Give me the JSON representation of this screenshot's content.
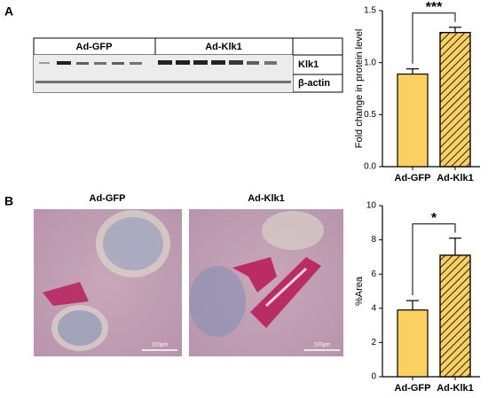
{
  "panel_labels": [
    "A",
    "B"
  ],
  "blot": {
    "groups": [
      "Ad-GFP",
      "Ad-Klk1"
    ],
    "rows": [
      "Klk1",
      "β-actin"
    ]
  },
  "histology": {
    "titles": [
      "Ad-GFP",
      "Ad-Klk1"
    ],
    "scale_bars": [
      "100μm",
      "100μm"
    ]
  },
  "chart_data": [
    {
      "type": "bar",
      "ylabel": "Fold change in protein level",
      "categories": [
        "Ad-GFP",
        "Ad-Klk1"
      ],
      "values": [
        0.89,
        1.29
      ],
      "errors": [
        0.05,
        0.05
      ],
      "colors": [
        "#fad160",
        "#fad160"
      ],
      "hatch": [
        false,
        true
      ],
      "ylim": [
        0,
        1.5
      ],
      "yticks": [
        {
          "value": 0,
          "label": "0.0"
        },
        {
          "value": 0.5,
          "label": "0.5"
        },
        {
          "value": 1,
          "label": "1.0"
        },
        {
          "value": 1.5,
          "label": "1.5"
        }
      ],
      "annotation": "***"
    },
    {
      "type": "bar",
      "ylabel": "%Area",
      "categories": [
        "Ad-GFP",
        "Ad-Klk1"
      ],
      "values": [
        3.9,
        7.1
      ],
      "errors": [
        0.55,
        1.0
      ],
      "colors": [
        "#fad160",
        "#fad160"
      ],
      "hatch": [
        false,
        true
      ],
      "ylim": [
        0,
        10
      ],
      "yticks": [
        0,
        2,
        4,
        6,
        8,
        10
      ],
      "annotation": "*"
    }
  ]
}
